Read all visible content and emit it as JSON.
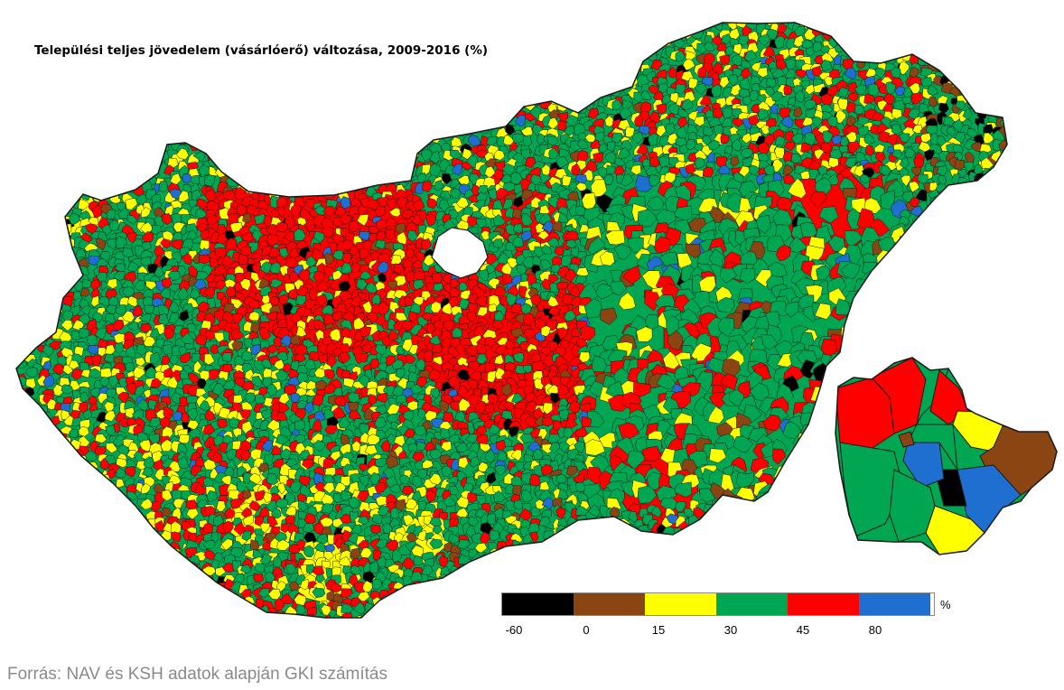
{
  "title": "Települési teljes jövedelem (vásárlóerő) változása, 2009-2016 (%)",
  "legend": {
    "unit": "%",
    "ticks": [
      "-60",
      "0",
      "15",
      "30",
      "45",
      "80"
    ],
    "classes": [
      {
        "color": "#000000",
        "icon": "black-swatch"
      },
      {
        "color": "#8B4513",
        "icon": "brown-swatch"
      },
      {
        "color": "#FFFF00",
        "icon": "yellow-swatch"
      },
      {
        "color": "#00A651",
        "icon": "green-swatch"
      },
      {
        "color": "#FF0000",
        "icon": "red-swatch"
      },
      {
        "color": "#1E6FD0",
        "icon": "blue-swatch"
      }
    ]
  },
  "source": "Forrás: NAV és KSH adatok alapján GKI számítás",
  "colors": {
    "border": "#1a1a1a",
    "black": "#000000",
    "brown": "#8B4513",
    "yellow": "#FFFF00",
    "green": "#00A651",
    "red": "#FF0000",
    "blue": "#1E6FD0"
  }
}
